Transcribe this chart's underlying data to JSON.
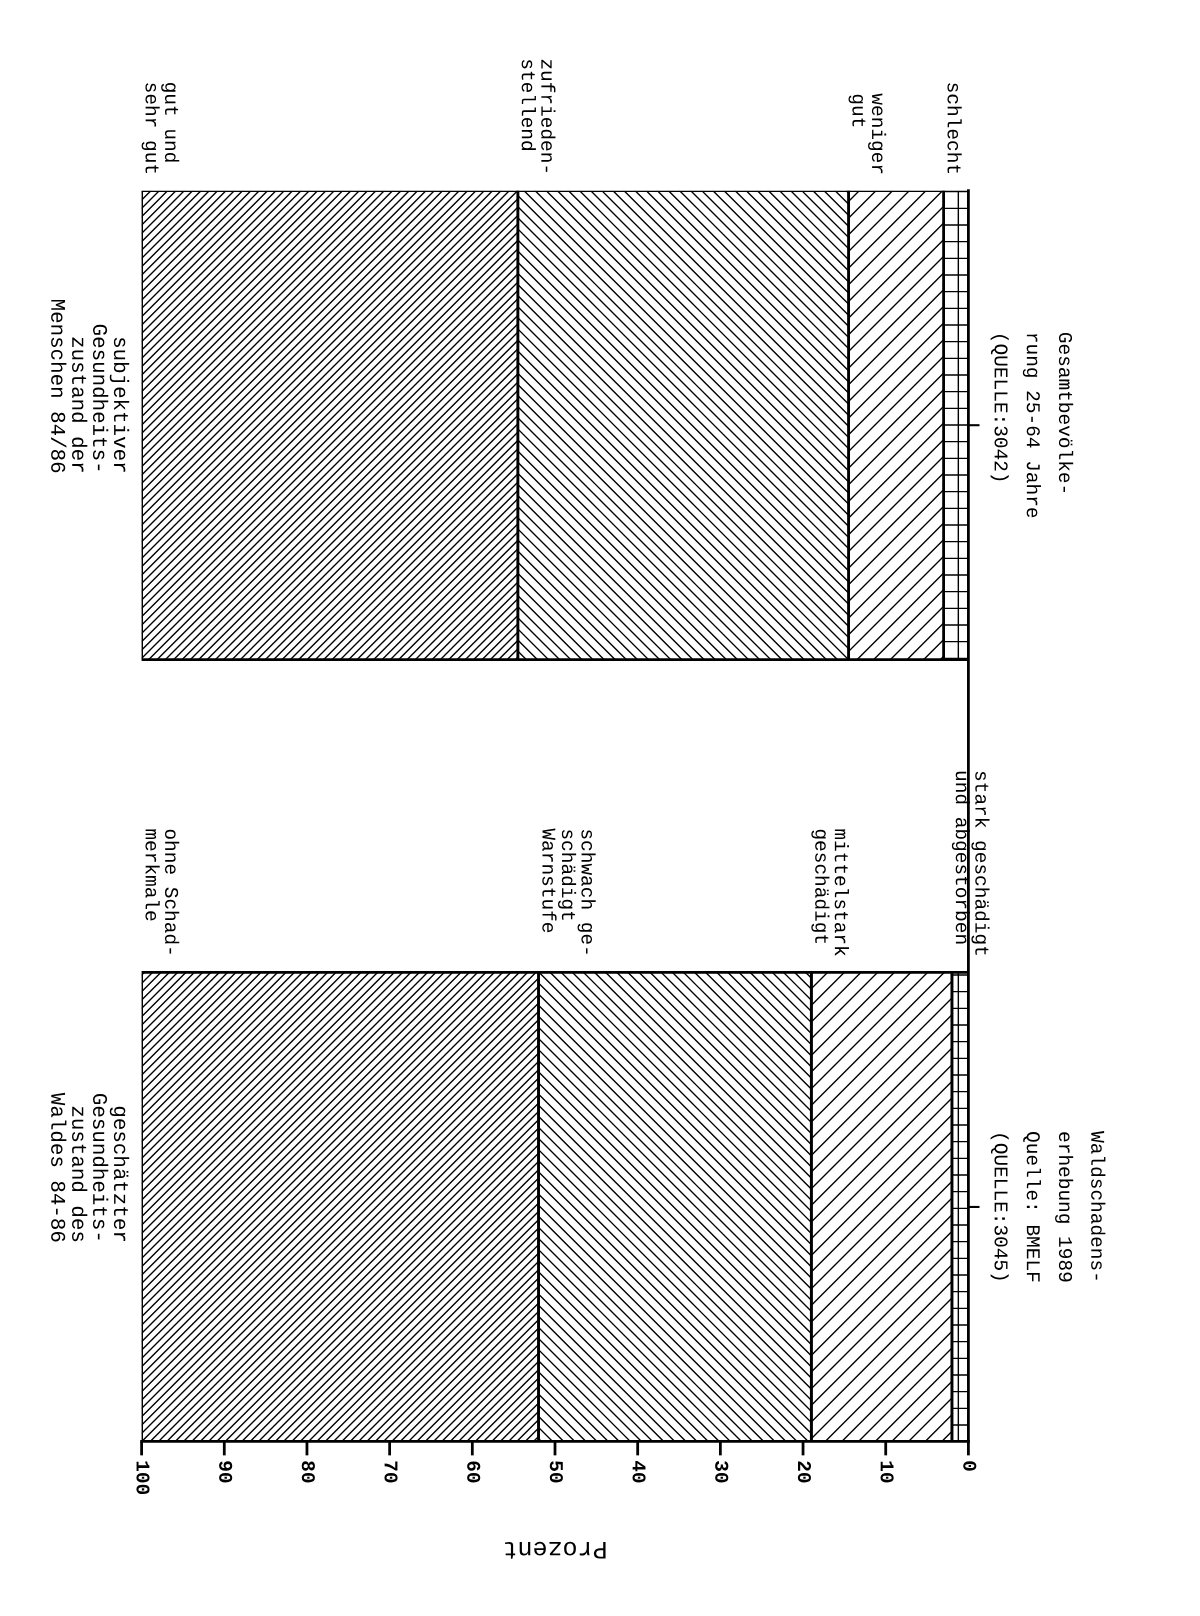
{
  "chart_data": {
    "type": "bar",
    "orientation": "horizontal",
    "stacked": true,
    "categories": [
      "Gesamtbevölke-\nrung 25-64 Jahre\n(QUELLE:3042)",
      "Waldschadens-\nerhebung 1989\nQuelle: BMELF\n(QUELLE:3045)"
    ],
    "series": [
      {
        "name": "schlecht",
        "values": [
          3,
          null
        ]
      },
      {
        "name": "weniger\ngut",
        "values": [
          11.5,
          null
        ]
      },
      {
        "name": "zufrieden-\nstellend",
        "values": [
          40,
          null
        ]
      },
      {
        "name": "gut und\nsehr gut",
        "values": [
          45.5,
          null
        ]
      },
      {
        "name": "stark geschädigt\nund abgestorben",
        "values": [
          null,
          2
        ]
      },
      {
        "name": "mittelstark\ngeschädigt",
        "values": [
          null,
          17
        ]
      },
      {
        "name": "schwach ge-\nschädigt\nWarnstufe",
        "values": [
          null,
          33
        ]
      },
      {
        "name": "ohne Schad-\nmerkmale",
        "values": [
          null,
          48
        ]
      }
    ],
    "xlim": [
      100,
      0
    ],
    "xticks": [
      100,
      90,
      80,
      70,
      60,
      50,
      40,
      30,
      20,
      10,
      0
    ],
    "xlabel": "Prozent",
    "annotations": [
      "subjektiver\nGesundheits-\nzustand der\nMenschen 84/86",
      "geschätzter\nGesundheits-\nzustand des\nWaldes 84-86"
    ],
    "grid": false,
    "legend": false
  }
}
